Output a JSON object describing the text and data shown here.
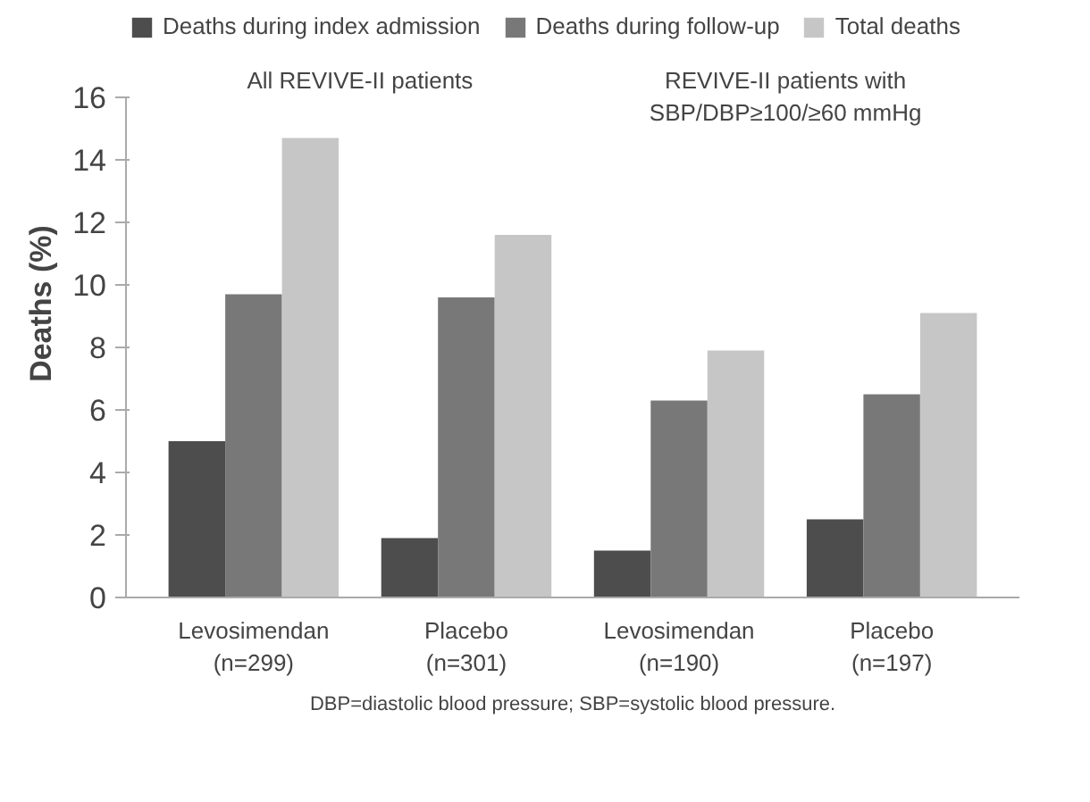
{
  "chart_data": {
    "type": "bar",
    "ylabel": "Deaths (%)",
    "categories": [
      "Levosimendan\n(n=299)",
      "Placebo\n(n=301)",
      "Levosimendan\n(n=190)",
      "Placebo\n(n=197)"
    ],
    "series": [
      {
        "name": "Deaths during index admission",
        "color": "#4d4d4d",
        "values": [
          5.0,
          1.9,
          1.5,
          2.5
        ]
      },
      {
        "name": "Deaths during follow-up",
        "color": "#787878",
        "values": [
          9.7,
          9.6,
          6.3,
          6.5
        ]
      },
      {
        "name": "Total deaths",
        "color": "#c6c6c6",
        "values": [
          14.7,
          11.6,
          7.9,
          9.1
        ]
      }
    ],
    "ylim": [
      0,
      16
    ],
    "yticks": [
      0,
      2,
      4,
      6,
      8,
      10,
      12,
      14,
      16
    ],
    "grid": false,
    "legend": "top",
    "annotations": [
      "All REVIVE-II patients",
      "REVIVE-II patients with\nSBP/DBP≥100/≥60 mmHg",
      "DBP=diastolic blood pressure; SBP=systolic blood pressure."
    ]
  }
}
